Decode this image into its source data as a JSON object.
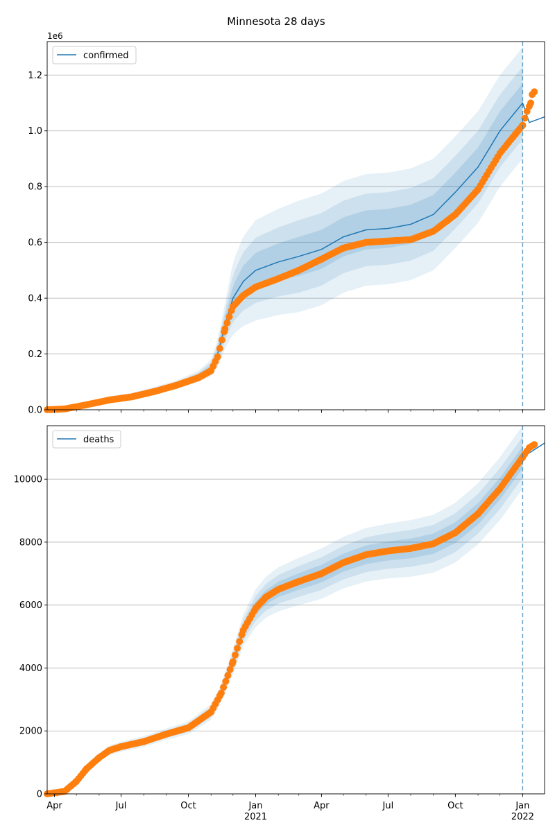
{
  "title": "Minnesota 28 days",
  "colors": {
    "model": "#1f77b4",
    "observed": "#ff7f0e",
    "band": "#1f77b4",
    "grid": "#b0b0b0",
    "forecast_line": "#1f77b4"
  },
  "x_axis": {
    "ticks": [
      {
        "date": "2020-04-01",
        "label": "Apr"
      },
      {
        "date": "2020-07-01",
        "label": "Jul"
      },
      {
        "date": "2020-10-01",
        "label": "Oct"
      },
      {
        "date": "2021-01-01",
        "label": "Jan",
        "sublabel": "2021"
      },
      {
        "date": "2021-04-01",
        "label": "Apr"
      },
      {
        "date": "2021-07-01",
        "label": "Jul"
      },
      {
        "date": "2021-10-01",
        "label": "Oct"
      },
      {
        "date": "2022-01-01",
        "label": "Jan",
        "sublabel": "2022"
      }
    ],
    "xlim": [
      "2020-03-22",
      "2022-01-31"
    ],
    "forecast_start": "2022-01-01"
  },
  "chart_data": [
    {
      "type": "line",
      "legend": "confirmed",
      "legend_loc": "top-left",
      "offset_label": "1e6",
      "grid": true,
      "ylim": [
        0,
        1.32
      ],
      "yticks": [
        "0.0",
        "0.2",
        "0.4",
        "0.6",
        "0.8",
        "1.0",
        "1.2"
      ],
      "ytick_values": [
        0,
        0.2,
        0.4,
        0.6,
        0.8,
        1.0,
        1.2
      ],
      "model": {
        "x": [
          "2020-03-22",
          "2020-04-15",
          "2020-05-15",
          "2020-06-15",
          "2020-07-15",
          "2020-08-15",
          "2020-09-15",
          "2020-10-15",
          "2020-11-01",
          "2020-11-10",
          "2020-11-20",
          "2020-12-01",
          "2020-12-15",
          "2021-01-01",
          "2021-02-01",
          "2021-03-01",
          "2021-04-01",
          "2021-05-01",
          "2021-06-01",
          "2021-07-01",
          "2021-08-01",
          "2021-09-01",
          "2021-10-01",
          "2021-11-01",
          "2021-12-01",
          "2022-01-01",
          "2022-01-10",
          "2022-01-31"
        ],
        "y": [
          0.0,
          0.005,
          0.02,
          0.04,
          0.05,
          0.07,
          0.09,
          0.12,
          0.15,
          0.2,
          0.3,
          0.4,
          0.46,
          0.5,
          0.53,
          0.55,
          0.575,
          0.62,
          0.645,
          0.65,
          0.665,
          0.7,
          0.78,
          0.87,
          1.0,
          1.1,
          1.03,
          1.05
        ],
        "spread": [
          0.0,
          0.002,
          0.005,
          0.008,
          0.01,
          0.012,
          0.015,
          0.02,
          0.03,
          0.05,
          0.08,
          0.13,
          0.16,
          0.18,
          0.19,
          0.2,
          0.2,
          0.2,
          0.2,
          0.2,
          0.2,
          0.2,
          0.2,
          0.2,
          0.2,
          0.2,
          0.0,
          0.0
        ]
      },
      "observed": {
        "x": [
          "2020-03-22",
          "2020-04-15",
          "2020-05-15",
          "2020-06-15",
          "2020-07-15",
          "2020-08-15",
          "2020-09-15",
          "2020-10-15",
          "2020-11-01",
          "2020-11-10",
          "2020-11-20",
          "2020-12-01",
          "2020-12-15",
          "2021-01-01",
          "2021-02-01",
          "2021-03-01",
          "2021-04-01",
          "2021-05-01",
          "2021-06-01",
          "2021-07-01",
          "2021-08-01",
          "2021-09-01",
          "2021-10-01",
          "2021-11-01",
          "2021-12-01",
          "2022-01-01",
          "2022-01-07",
          "2022-01-12",
          "2022-01-14",
          "2022-01-17"
        ],
        "y": [
          0.0,
          0.003,
          0.018,
          0.035,
          0.046,
          0.065,
          0.088,
          0.115,
          0.14,
          0.19,
          0.29,
          0.37,
          0.41,
          0.44,
          0.47,
          0.5,
          0.54,
          0.58,
          0.6,
          0.605,
          0.61,
          0.64,
          0.7,
          0.79,
          0.92,
          1.02,
          1.07,
          1.1,
          1.13,
          1.14
        ]
      }
    },
    {
      "type": "line",
      "legend": "deaths",
      "legend_loc": "top-left",
      "grid": true,
      "ylim": [
        0,
        11700
      ],
      "yticks": [
        "0",
        "2000",
        "4000",
        "6000",
        "8000",
        "10000"
      ],
      "ytick_values": [
        0,
        2000,
        4000,
        6000,
        8000,
        10000
      ],
      "model": {
        "x": [
          "2020-03-22",
          "2020-04-15",
          "2020-05-01",
          "2020-05-15",
          "2020-06-01",
          "2020-06-15",
          "2020-07-01",
          "2020-08-01",
          "2020-09-01",
          "2020-10-01",
          "2020-11-01",
          "2020-11-15",
          "2020-12-01",
          "2020-12-15",
          "2021-01-01",
          "2021-01-15",
          "2021-02-01",
          "2021-03-01",
          "2021-04-01",
          "2021-05-01",
          "2021-06-01",
          "2021-07-01",
          "2021-08-01",
          "2021-09-01",
          "2021-10-01",
          "2021-11-01",
          "2021-12-01",
          "2022-01-01",
          "2022-01-31"
        ],
        "y": [
          0,
          80,
          400,
          800,
          1150,
          1380,
          1500,
          1660,
          1900,
          2100,
          2600,
          3200,
          4200,
          5200,
          5900,
          6250,
          6500,
          6750,
          7000,
          7350,
          7600,
          7720,
          7800,
          7950,
          8300,
          8900,
          9700,
          10700,
          11150
        ],
        "spread": [
          0,
          20,
          60,
          100,
          130,
          150,
          160,
          170,
          180,
          200,
          250,
          300,
          400,
          500,
          600,
          650,
          700,
          750,
          800,
          820,
          850,
          870,
          900,
          920,
          950,
          970,
          1000,
          1000,
          0
        ]
      },
      "observed": {
        "x": [
          "2020-03-22",
          "2020-04-15",
          "2020-05-01",
          "2020-05-15",
          "2020-06-01",
          "2020-06-15",
          "2020-07-01",
          "2020-08-01",
          "2020-09-01",
          "2020-10-01",
          "2020-11-01",
          "2020-11-15",
          "2020-12-01",
          "2020-12-15",
          "2021-01-01",
          "2021-01-15",
          "2021-02-01",
          "2021-03-01",
          "2021-04-01",
          "2021-05-01",
          "2021-06-01",
          "2021-07-01",
          "2021-08-01",
          "2021-09-01",
          "2021-10-01",
          "2021-11-01",
          "2021-12-01",
          "2022-01-01",
          "2022-01-10",
          "2022-01-17"
        ],
        "y": [
          0,
          80,
          400,
          800,
          1150,
          1380,
          1500,
          1660,
          1900,
          2100,
          2600,
          3200,
          4200,
          5200,
          5900,
          6250,
          6500,
          6750,
          7000,
          7350,
          7600,
          7720,
          7800,
          7950,
          8300,
          8900,
          9700,
          10700,
          11000,
          11100
        ]
      }
    }
  ]
}
